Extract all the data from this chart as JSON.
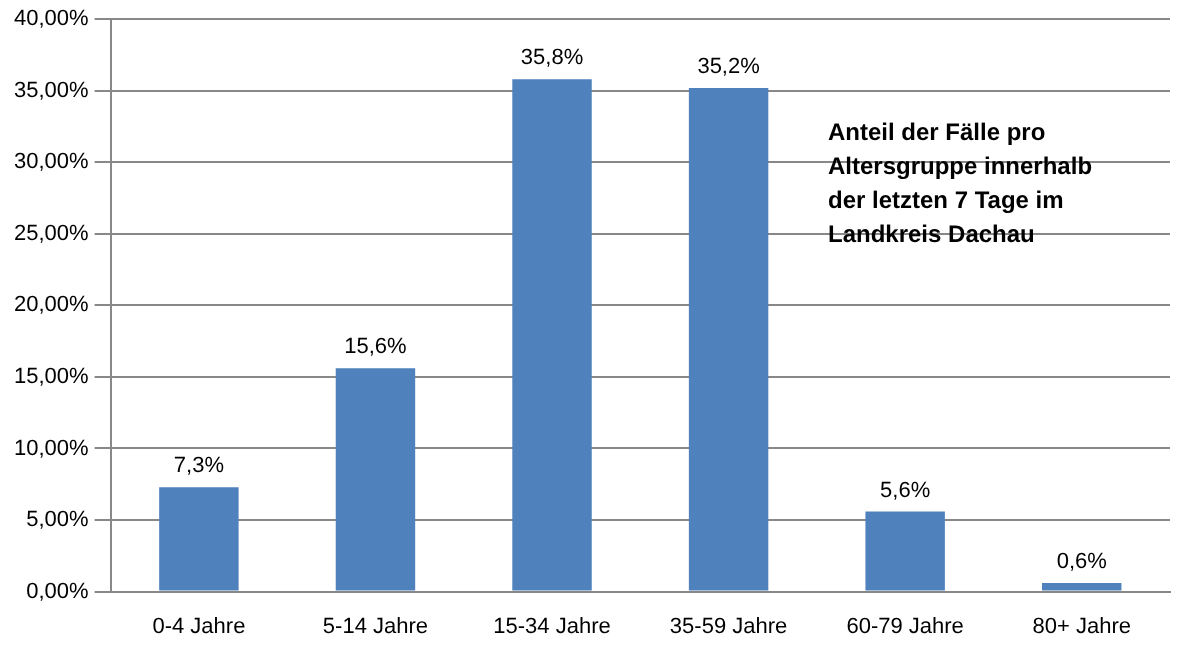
{
  "chart_data": {
    "type": "bar",
    "title": "Anteil der Fälle pro Altersgruppe innerhalb der letzten 7 Tage im Landkreis Dachau",
    "categories": [
      "0-4 Jahre",
      "5-14 Jahre",
      "15-34 Jahre",
      "35-59 Jahre",
      "60-79 Jahre",
      "80+ Jahre"
    ],
    "values": [
      7.3,
      15.6,
      35.8,
      35.2,
      5.6,
      0.6
    ],
    "value_labels": [
      "7,3%",
      "15,6%",
      "35,8%",
      "35,2%",
      "5,6%",
      "0,6%"
    ],
    "color": "#4f81bd",
    "ylim": [
      0,
      40
    ],
    "yticks": [
      {
        "value": 0,
        "label": "0,00%"
      },
      {
        "value": 5,
        "label": "5,00%"
      },
      {
        "value": 10,
        "label": "10,00%"
      },
      {
        "value": 15,
        "label": "15,00%"
      },
      {
        "value": 20,
        "label": "20,00%"
      },
      {
        "value": 25,
        "label": "25,00%"
      },
      {
        "value": 30,
        "label": "30,00%"
      },
      {
        "value": 35,
        "label": "35,00%"
      },
      {
        "value": 40,
        "label": "40,00%"
      }
    ],
    "grid": "y",
    "legend": false
  }
}
